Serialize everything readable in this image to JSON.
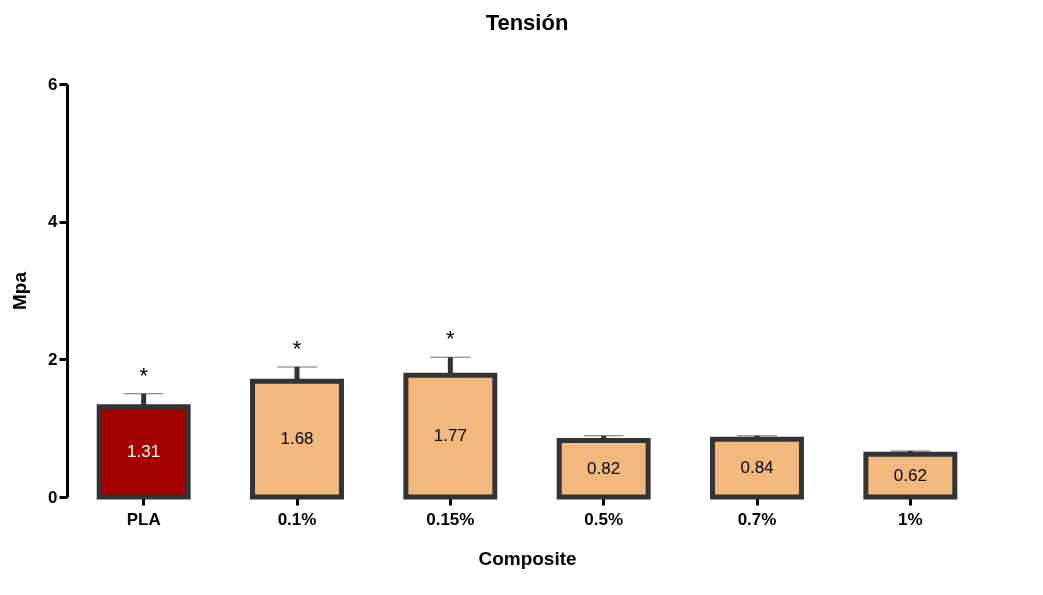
{
  "chart_data": {
    "type": "bar",
    "title": "Tensión",
    "xlabel": "Composite",
    "ylabel": "Mpa",
    "categories": [
      "PLA",
      "0.1%",
      "0.15%",
      "0.5%",
      "0.7%",
      "1%"
    ],
    "values": [
      1.31,
      1.68,
      1.77,
      0.82,
      0.84,
      0.62
    ],
    "colors": [
      "#a50000",
      "#f2b97f",
      "#f2b97f",
      "#f2b97f",
      "#f2b97f",
      "#f2b97f"
    ],
    "errors": [
      [
        1.31,
        1.5
      ],
      [
        1.68,
        1.89
      ],
      [
        1.77,
        2.03
      ],
      [
        0.82,
        0.89
      ],
      [
        0.84,
        0.89
      ],
      [
        0.62,
        0.67
      ]
    ],
    "data_labels": true,
    "annotations": [
      {
        "text": "*",
        "x": "PLA",
        "y": 1.5
      },
      {
        "text": "*",
        "x": "0.1%",
        "y": 1.89
      },
      {
        "text": "*",
        "x": "0.15%",
        "y": 2.03
      }
    ],
    "ylim": [
      0,
      6
    ],
    "yticks": [
      0,
      2,
      4,
      6
    ],
    "grid": false
  }
}
